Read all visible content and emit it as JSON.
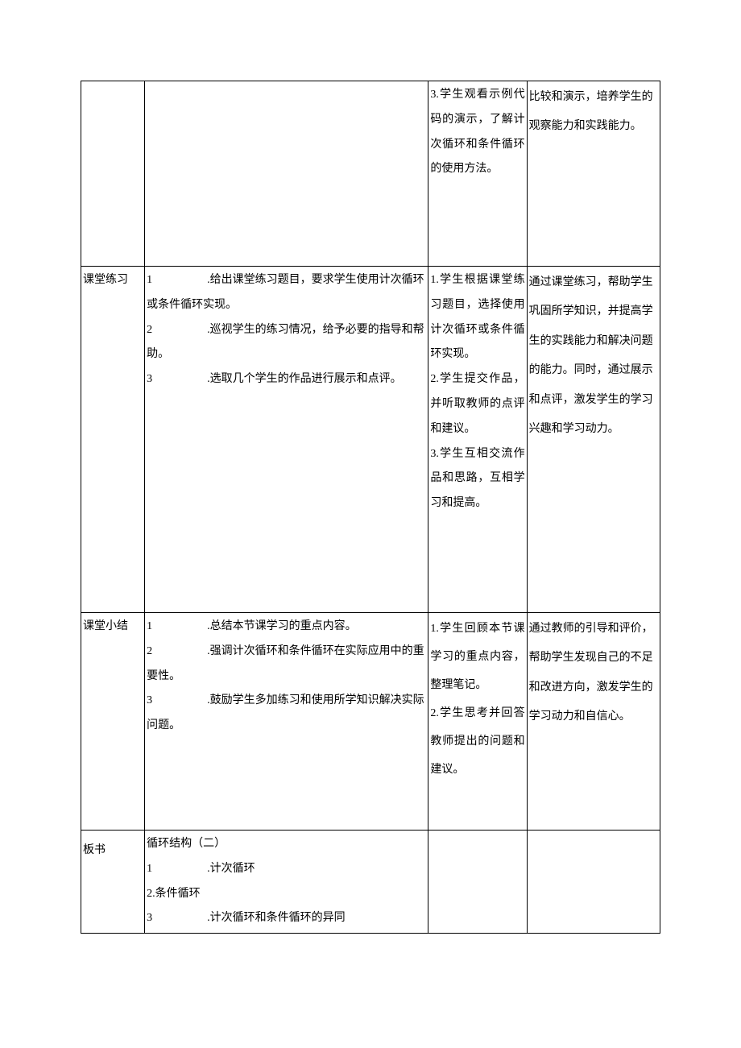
{
  "table": {
    "border_color": "#000000",
    "background_color": "#ffffff",
    "font_family": "SimSun",
    "font_size_pt": 10
  },
  "rows": [
    {
      "col1": "",
      "col2": "",
      "col3": "3.学生观看示例代码的演示，了解计次循环和条件循环的使用方法。",
      "col4": "比较和演示，培养学生的观察能力和实践能力。"
    },
    {
      "col1": "课堂练习",
      "col2_items": [
        {
          "num": "1",
          "text": ".给出课堂练习题目，要求学生使用计次循环或条件循环实现。",
          "indent": true
        },
        {
          "num": "2",
          "text": ".巡视学生的练习情况，给予必要的指导和帮助。",
          "indent": true
        },
        {
          "num": "3",
          "text": ".选取几个学生的作品进行展示和点评。",
          "indent": true
        }
      ],
      "col3": "1.学生根据课堂练习题目，选择使用计次循环或条件循环实现。\n2.学生提交作品，并听取教师的点评和建议。\n3.学生互相交流作品和思路，互相学习和提高。",
      "col4": "通过课堂练习，帮助学生巩固所学知识，并提高学生的实践能力和解决问题的能力。同时，通过展示和点评，激发学生的学习兴趣和学习动力。"
    },
    {
      "col1": "课堂小结",
      "col2_items": [
        {
          "num": "1",
          "text": ".总结本节课学习的重点内容。",
          "indent": true
        },
        {
          "num": "2",
          "text": ".强调计次循环和条件循环在实际应用中的重要性。",
          "indent": true
        },
        {
          "num": "3",
          "text": ".鼓励学生多加练习和使用所学知识解决实际问题。",
          "indent": true
        }
      ],
      "col3": "1.学生回顾本节课学习的重点内容，整理笔记。\n2.学生思考并回答教师提出的问题和建议。",
      "col4": "通过教师的引导和评价，帮助学生发现自己的不足和改进方向，激发学生的学习动力和自信心。"
    },
    {
      "col1": "板书",
      "col2_lines": [
        "循环结构（二）",
        {
          "num": "1",
          "text": ".计次循环",
          "indent": true
        },
        "2.条件循环",
        {
          "num": "3",
          "text": ".计次循环和条件循环的异同",
          "indent": true
        }
      ],
      "col3": "",
      "col4": ""
    }
  ]
}
